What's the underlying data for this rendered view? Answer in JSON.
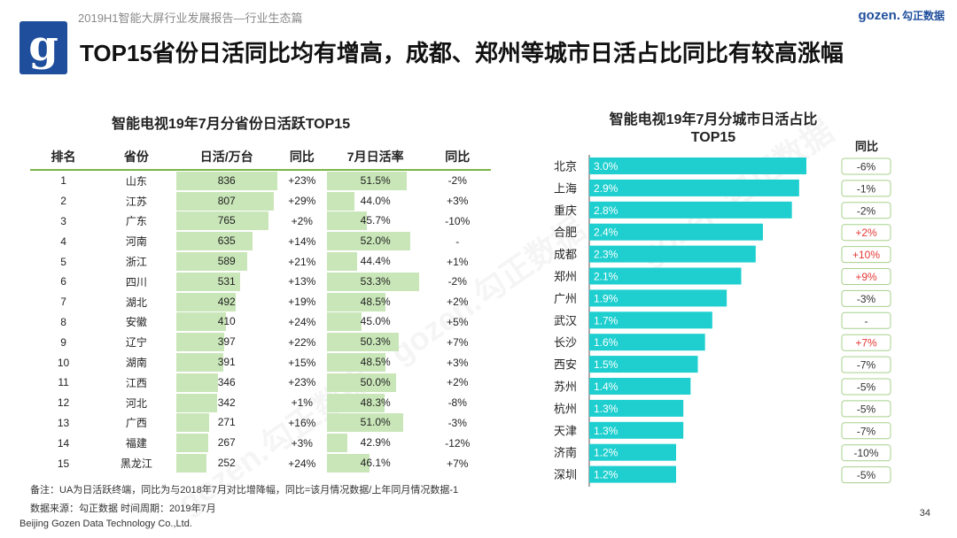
{
  "header": {
    "report": "2019H1智能大屏行业发展报告—行业生态篇",
    "brand_en": "gozen.",
    "brand_cn": "勾正数据",
    "logo_letter": "g"
  },
  "title": "TOP15省份日活同比均有增高，成都、郑州等城市日活占比同比有较高涨幅",
  "left_table": {
    "title": "智能电视19年7月分省份日活跃TOP15",
    "headers": [
      "排名",
      "省份",
      "日活/万台",
      "同比",
      "7月日活率",
      "同比"
    ],
    "rows": [
      {
        "rank": "1",
        "prov": "山东",
        "dau": 836,
        "yoy": "+23%",
        "rate": "51.5%",
        "ryoy": "-2%"
      },
      {
        "rank": "2",
        "prov": "江苏",
        "dau": 807,
        "yoy": "+29%",
        "rate": "44.0%",
        "ryoy": "+3%"
      },
      {
        "rank": "3",
        "prov": "广东",
        "dau": 765,
        "yoy": "+2%",
        "rate": "45.7%",
        "ryoy": "-10%"
      },
      {
        "rank": "4",
        "prov": "河南",
        "dau": 635,
        "yoy": "+14%",
        "rate": "52.0%",
        "ryoy": "-"
      },
      {
        "rank": "5",
        "prov": "浙江",
        "dau": 589,
        "yoy": "+21%",
        "rate": "44.4%",
        "ryoy": "+1%"
      },
      {
        "rank": "6",
        "prov": "四川",
        "dau": 531,
        "yoy": "+13%",
        "rate": "53.3%",
        "ryoy": "-2%"
      },
      {
        "rank": "7",
        "prov": "湖北",
        "dau": 492,
        "yoy": "+19%",
        "rate": "48.5%",
        "ryoy": "+2%"
      },
      {
        "rank": "8",
        "prov": "安徽",
        "dau": 410,
        "yoy": "+24%",
        "rate": "45.0%",
        "ryoy": "+5%"
      },
      {
        "rank": "9",
        "prov": "辽宁",
        "dau": 397,
        "yoy": "+22%",
        "rate": "50.3%",
        "ryoy": "+7%"
      },
      {
        "rank": "10",
        "prov": "湖南",
        "dau": 391,
        "yoy": "+15%",
        "rate": "48.5%",
        "ryoy": "+3%"
      },
      {
        "rank": "11",
        "prov": "江西",
        "dau": 346,
        "yoy": "+23%",
        "rate": "50.0%",
        "ryoy": "+2%"
      },
      {
        "rank": "12",
        "prov": "河北",
        "dau": 342,
        "yoy": "+1%",
        "rate": "48.3%",
        "ryoy": "-8%"
      },
      {
        "rank": "13",
        "prov": "广西",
        "dau": 271,
        "yoy": "+16%",
        "rate": "51.0%",
        "ryoy": "-3%"
      },
      {
        "rank": "14",
        "prov": "福建",
        "dau": 267,
        "yoy": "+3%",
        "rate": "42.9%",
        "ryoy": "-12%"
      },
      {
        "rank": "15",
        "prov": "黑龙江",
        "dau": 252,
        "yoy": "+24%",
        "rate": "46.1%",
        "ryoy": "+7%"
      }
    ]
  },
  "chart_data": {
    "type": "bar",
    "orientation": "horizontal",
    "title": "智能电视19年7月分城市日活占比 TOP15",
    "title_line1": "智能电视19年7月分城市日活占比",
    "title_line2": "TOP15",
    "change_header": "同比",
    "categories": [
      "北京",
      "上海",
      "重庆",
      "合肥",
      "成都",
      "郑州",
      "广州",
      "武汉",
      "长沙",
      "西安",
      "苏州",
      "杭州",
      "天津",
      "济南",
      "深圳"
    ],
    "values": [
      3.0,
      2.9,
      2.8,
      2.4,
      2.3,
      2.1,
      1.9,
      1.7,
      1.6,
      1.5,
      1.4,
      1.3,
      1.3,
      1.2,
      1.2
    ],
    "value_labels": [
      "3.0%",
      "2.9%",
      "2.8%",
      "2.4%",
      "2.3%",
      "2.1%",
      "1.9%",
      "1.7%",
      "1.6%",
      "1.5%",
      "1.4%",
      "1.3%",
      "1.3%",
      "1.2%",
      "1.2%"
    ],
    "yoy": [
      "-6%",
      "-1%",
      "-2%",
      "+2%",
      "+10%",
      "+9%",
      "-3%",
      "-",
      "+7%",
      "-7%",
      "-5%",
      "-5%",
      "-7%",
      "-10%",
      "-5%"
    ],
    "xlim": [
      0,
      3.0
    ],
    "bar_color": "#1fcfcf",
    "positive_color": "#e53935"
  },
  "colors": {
    "cell_fill": "#c9e6b8",
    "rule": "#7ab648",
    "brand": "#1f4e9c"
  },
  "watermark": "gozen.勾正数据",
  "footer": {
    "note": "备注：UA为日活跃终端，同比为与2018年7月对比增降幅，同比=该月情况数据/上年同月情况数据-1",
    "source": "数据来源：勾正数据      时间周期：2019年7月",
    "company": "Beijing Gozen Data Technology Co.,Ltd.",
    "page": "34"
  }
}
